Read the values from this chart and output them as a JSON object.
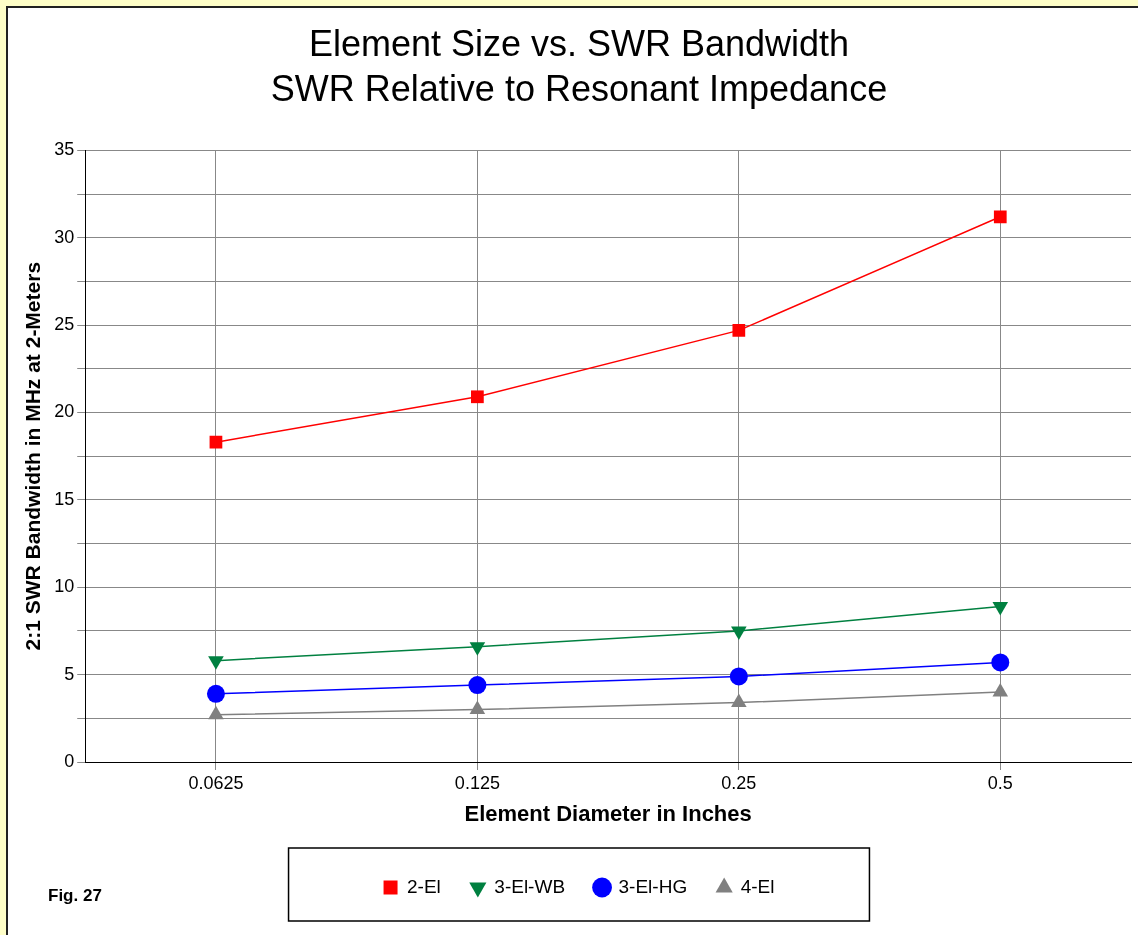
{
  "chart_data": {
    "type": "line",
    "title": "Element Size vs. SWR Bandwidth",
    "subtitle": "SWR Relative to Resonant Impedance",
    "xlabel": "Element Diameter in Inches",
    "ylabel": "2:1 SWR Bandwidth in MHz at 2-Meters",
    "categories": [
      "0.0625",
      "0.125",
      "0.25",
      "0.5"
    ],
    "series": [
      {
        "name": "2-El",
        "color": "#ff0000",
        "marker": "square",
        "values": [
          18.3,
          20.9,
          24.7,
          31.2
        ]
      },
      {
        "name": "3-El-WB",
        "color": "#008040",
        "marker": "triangle_down",
        "values": [
          5.8,
          6.6,
          7.5,
          8.9
        ]
      },
      {
        "name": "3-El-HG",
        "color": "#0000ff",
        "marker": "circle",
        "values": [
          3.9,
          4.4,
          4.9,
          5.7
        ]
      },
      {
        "name": "4-El",
        "color": "#808080",
        "marker": "triangle",
        "values": [
          2.7,
          3.0,
          3.4,
          4.0
        ]
      }
    ],
    "ylim": [
      0,
      35
    ],
    "yticks": [
      0,
      {
        "value": 2.5,
        "label": null
      },
      5,
      {
        "value": 7.5,
        "label": null
      },
      10,
      {
        "value": 12.5,
        "label": null
      },
      15,
      {
        "value": 17.5,
        "label": null
      },
      20,
      {
        "value": 22.5,
        "label": null
      },
      25,
      {
        "value": 27.5,
        "label": null
      },
      30,
      {
        "value": 32.5,
        "label": null
      },
      35
    ],
    "grid": true,
    "legend": "bottom",
    "line_style": "solid",
    "annotations": [
      "Fig. 27"
    ]
  }
}
